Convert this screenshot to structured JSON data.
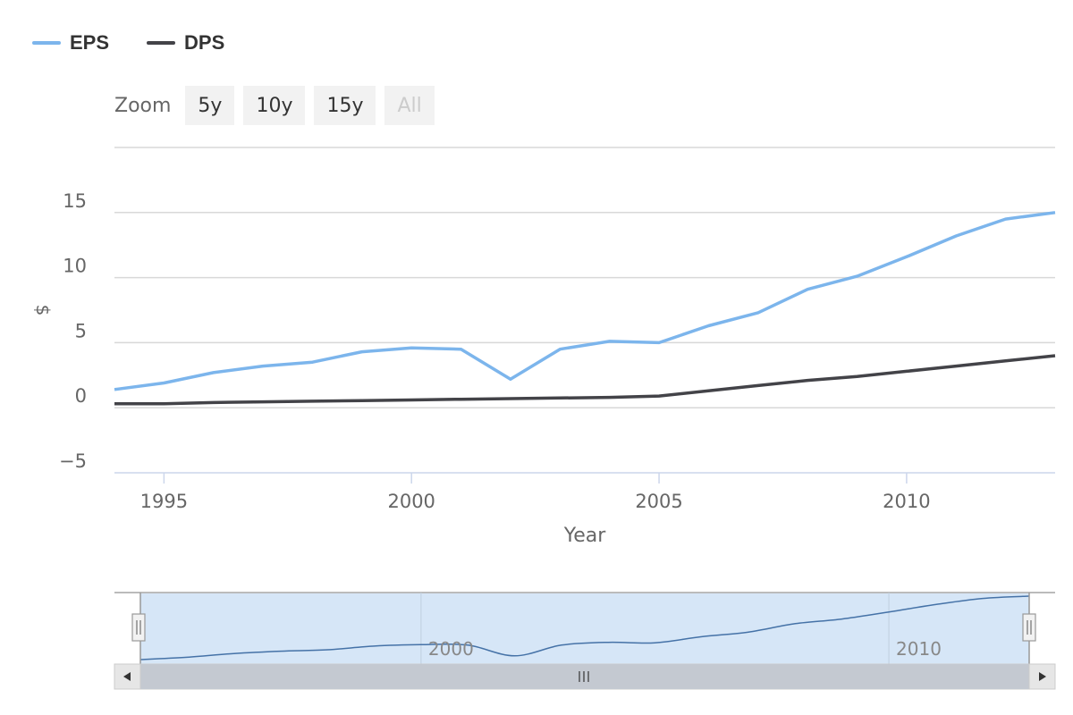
{
  "legend": [
    {
      "name": "EPS",
      "color": "#7cb5ec"
    },
    {
      "name": "DPS",
      "color": "#434348"
    }
  ],
  "range_selector": {
    "label": "Zoom",
    "buttons": [
      {
        "label": "5y",
        "state": "normal"
      },
      {
        "label": "10y",
        "state": "normal"
      },
      {
        "label": "15y",
        "state": "normal"
      },
      {
        "label": "All",
        "state": "disabled"
      }
    ]
  },
  "chart_data": {
    "type": "line",
    "title": "",
    "xlabel": "Year",
    "ylabel": "$",
    "xlim": [
      1994,
      2013
    ],
    "ylim": [
      -5,
      20
    ],
    "x_ticks": [
      1995,
      2000,
      2005,
      2010
    ],
    "y_ticks": [
      -5,
      0,
      5,
      10,
      15
    ],
    "grid": true,
    "legend_position": "top-left",
    "x": [
      1994,
      1995,
      1996,
      1997,
      1998,
      1999,
      2000,
      2001,
      2002,
      2003,
      2004,
      2005,
      2006,
      2007,
      2008,
      2009,
      2010,
      2011,
      2012,
      2013
    ],
    "series": [
      {
        "name": "EPS",
        "color": "#7cb5ec",
        "values": [
          1.4,
          1.9,
          2.7,
          3.2,
          3.5,
          4.3,
          4.6,
          4.5,
          2.2,
          4.5,
          5.1,
          5.0,
          6.3,
          7.3,
          9.1,
          10.1,
          11.6,
          13.2,
          14.5,
          15.0
        ]
      },
      {
        "name": "DPS",
        "color": "#434348",
        "values": [
          0.3,
          0.3,
          0.4,
          0.45,
          0.5,
          0.55,
          0.6,
          0.65,
          0.7,
          0.75,
          0.8,
          0.9,
          1.3,
          1.7,
          2.1,
          2.4,
          2.8,
          3.2,
          3.6,
          4.0
        ]
      }
    ],
    "navigator": {
      "x_ticks": [
        2000,
        2010
      ],
      "selected_range": [
        1994,
        2013
      ]
    }
  }
}
